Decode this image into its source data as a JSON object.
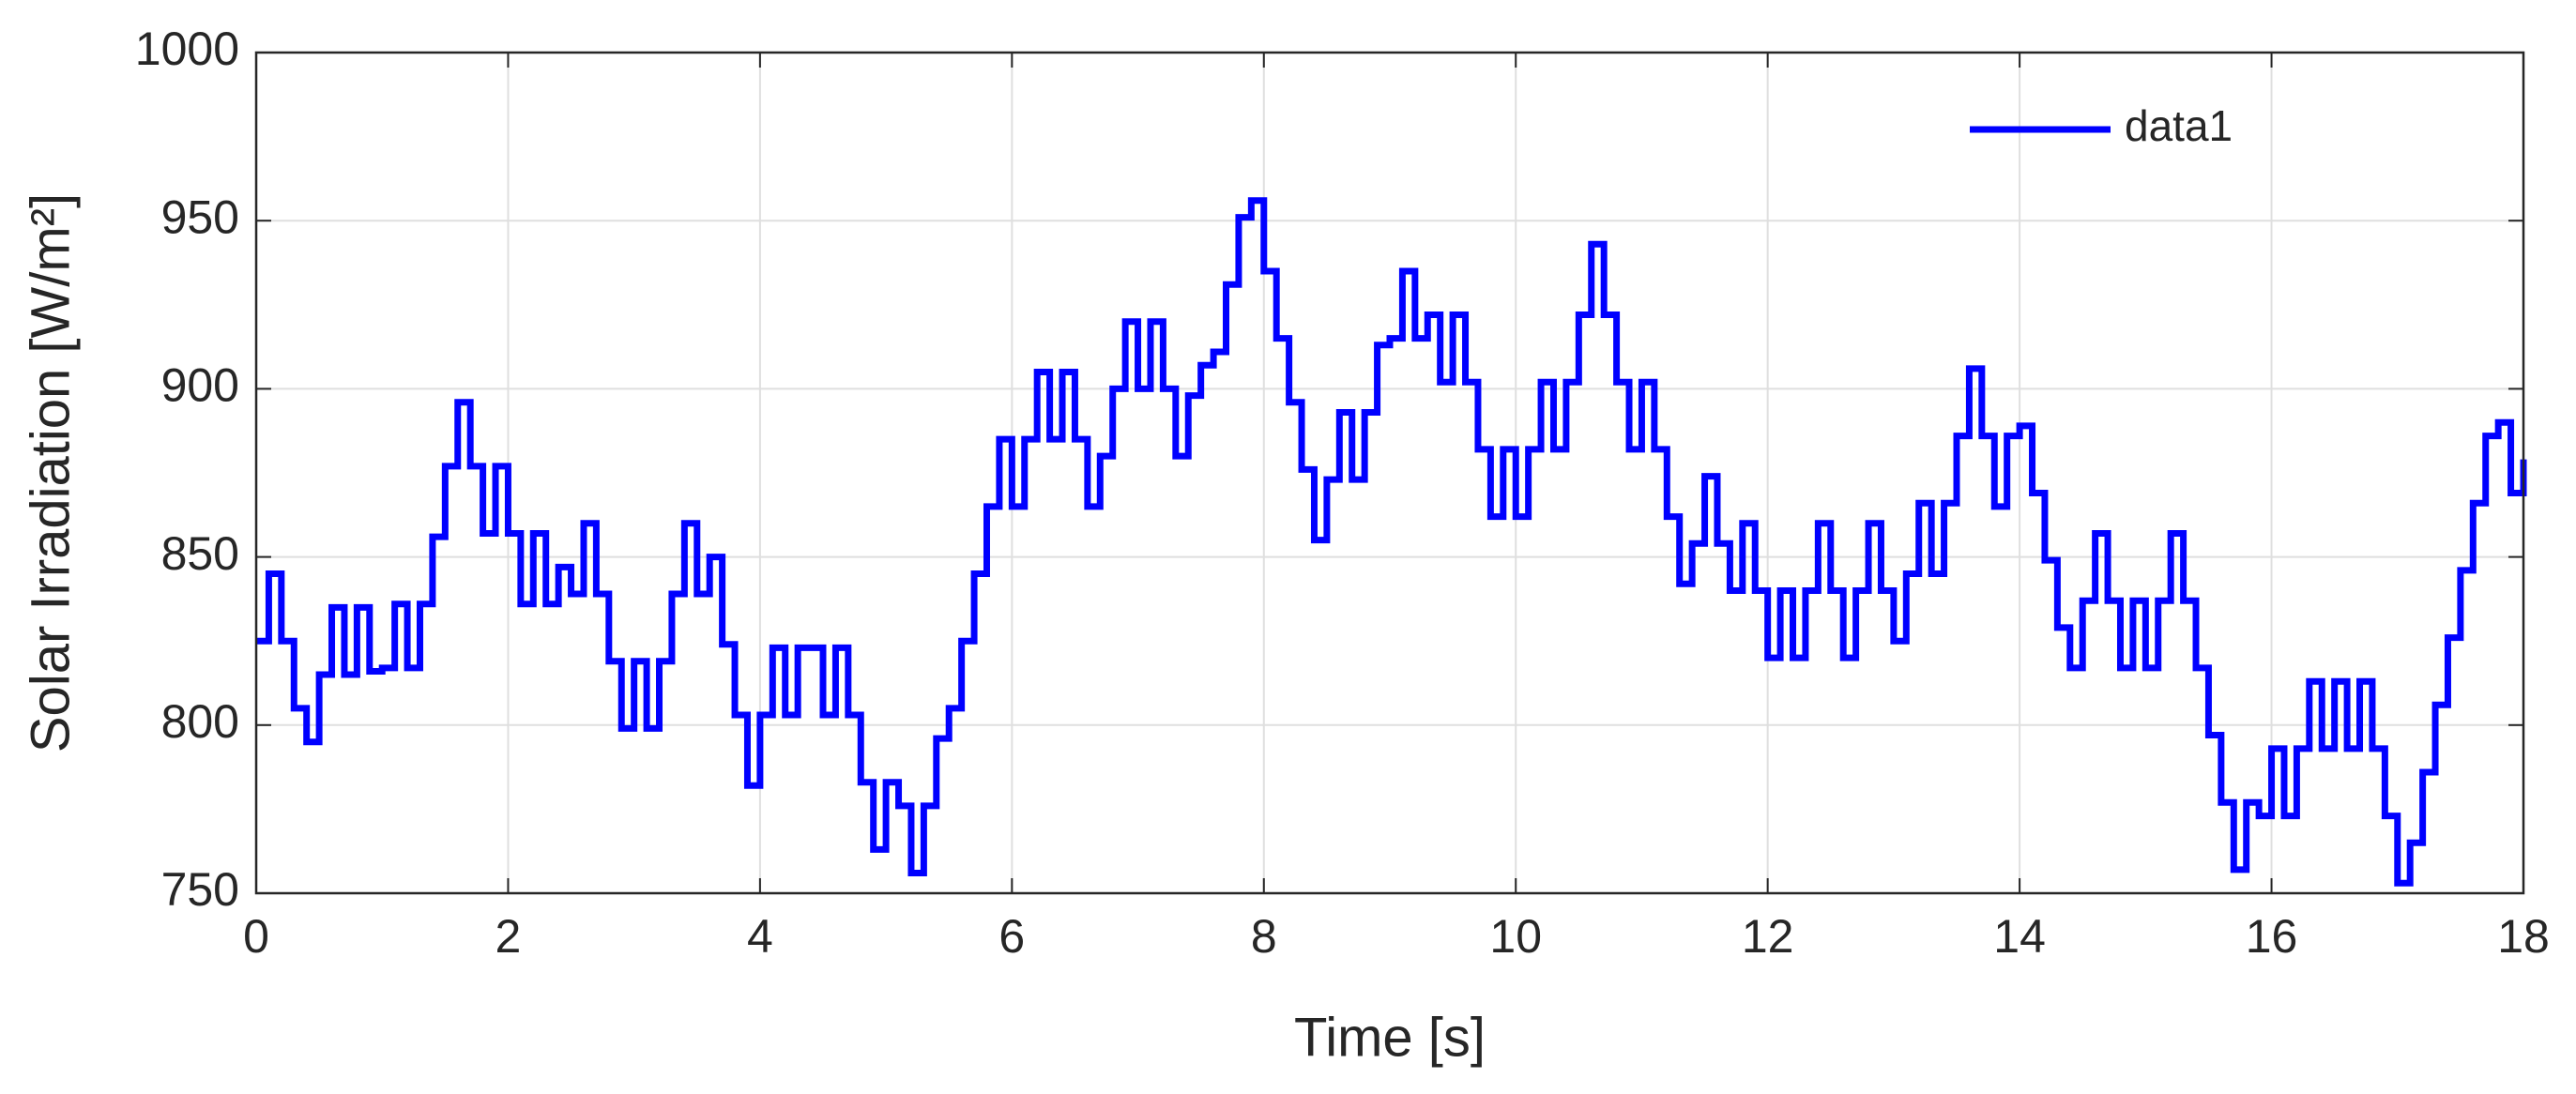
{
  "chart_data": {
    "type": "line",
    "drawstyle": "steps-post",
    "xlabel": "Time [s]",
    "ylabel": "Solar Irradiation [W/m²]",
    "x": [
      0,
      0.1,
      0.2,
      0.3,
      0.4,
      0.5,
      0.6,
      0.7,
      0.8,
      0.9,
      1,
      1.1,
      1.2,
      1.3,
      1.4,
      1.5,
      1.6,
      1.7,
      1.8,
      1.9,
      2,
      2.1,
      2.2,
      2.3,
      2.4,
      2.5,
      2.6,
      2.7,
      2.8,
      2.9,
      3,
      3.1,
      3.2,
      3.3,
      3.4,
      3.5,
      3.6,
      3.7,
      3.8,
      3.9,
      4,
      4.1,
      4.2,
      4.3,
      4.4,
      4.5,
      4.6,
      4.7,
      4.8,
      4.9,
      5,
      5.1,
      5.2,
      5.3,
      5.4,
      5.5,
      5.6,
      5.7,
      5.8,
      5.9,
      6,
      6.1,
      6.2,
      6.3,
      6.4,
      6.5,
      6.6,
      6.7,
      6.8,
      6.9,
      7,
      7.1,
      7.2,
      7.3,
      7.4,
      7.5,
      7.6,
      7.7,
      7.8,
      7.9,
      8,
      8.1,
      8.2,
      8.3,
      8.4,
      8.5,
      8.6,
      8.7,
      8.8,
      8.9,
      9,
      9.1,
      9.2,
      9.3,
      9.4,
      9.5,
      9.6,
      9.7,
      9.8,
      9.9,
      10,
      10.1,
      10.2,
      10.3,
      10.4,
      10.5,
      10.6,
      10.7,
      10.8,
      10.9,
      11,
      11.1,
      11.2,
      11.3,
      11.4,
      11.5,
      11.6,
      11.7,
      11.8,
      11.9,
      12,
      12.1,
      12.2,
      12.3,
      12.4,
      12.5,
      12.6,
      12.7,
      12.8,
      12.9,
      13,
      13.1,
      13.2,
      13.3,
      13.4,
      13.5,
      13.6,
      13.7,
      13.8,
      13.9,
      14,
      14.1,
      14.2,
      14.3,
      14.4,
      14.5,
      14.6,
      14.7,
      14.8,
      14.9,
      15,
      15.1,
      15.2,
      15.3,
      15.4,
      15.5,
      15.6,
      15.7,
      15.8,
      15.9,
      16,
      16.1,
      16.2,
      16.3,
      16.4,
      16.5,
      16.6,
      16.7,
      16.8,
      16.9,
      17,
      17.1,
      17.2,
      17.3,
      17.4,
      17.5,
      17.6,
      17.7,
      17.8,
      17.9,
      18
    ],
    "series": [
      {
        "name": "data1",
        "color": "#0000ff",
        "values": [
          825,
          845,
          825,
          805,
          795,
          815,
          835,
          815,
          835,
          816,
          817,
          836,
          817,
          836,
          856,
          877,
          896,
          877,
          857,
          877,
          857,
          836,
          857,
          836,
          847,
          839,
          860,
          839,
          819,
          799,
          819,
          799,
          819,
          839,
          860,
          839,
          850,
          824,
          803,
          782,
          803,
          823,
          803,
          823,
          823,
          803,
          823,
          803,
          783,
          763,
          783,
          776,
          756,
          776,
          796,
          805,
          825,
          845,
          865,
          885,
          865,
          885,
          905,
          885,
          905,
          885,
          865,
          880,
          900,
          920,
          900,
          920,
          900,
          880,
          898,
          907,
          911,
          931,
          951,
          956,
          935,
          915,
          896,
          876,
          855,
          873,
          893,
          873,
          893,
          913,
          915,
          935,
          915,
          922,
          902,
          922,
          902,
          882,
          862,
          882,
          862,
          882,
          902,
          882,
          902,
          922,
          943,
          922,
          902,
          882,
          902,
          882,
          862,
          842,
          854,
          874,
          854,
          840,
          860,
          840,
          820,
          840,
          820,
          840,
          860,
          840,
          820,
          840,
          860,
          840,
          825,
          845,
          866,
          845,
          866,
          886,
          906,
          886,
          865,
          886,
          889,
          869,
          849,
          829,
          817,
          837,
          857,
          837,
          817,
          837,
          817,
          837,
          857,
          837,
          817,
          797,
          777,
          757,
          777,
          773,
          793,
          773,
          793,
          813,
          793,
          813,
          793,
          813,
          793,
          773,
          753,
          765,
          786,
          806,
          826,
          846,
          866,
          886,
          890,
          869,
          879
        ]
      }
    ],
    "xlim": [
      0,
      18
    ],
    "xticks": [
      0,
      2,
      4,
      6,
      8,
      10,
      12,
      14,
      16,
      18
    ],
    "ylim": [
      750,
      1000
    ],
    "yticks": [
      750,
      800,
      850,
      900,
      950,
      1000
    ],
    "grid": true,
    "legend": "northeast"
  }
}
